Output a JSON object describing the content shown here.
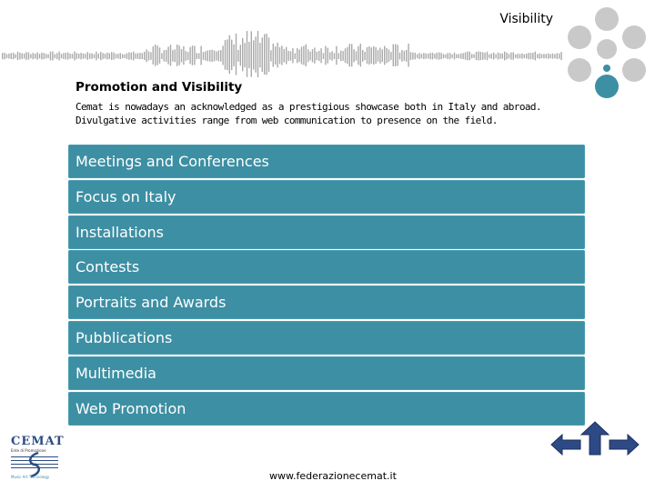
{
  "header": {
    "slide_title": "Visibility"
  },
  "section": {
    "heading": "Promotion and Visibility",
    "intro_lines": [
      "Cemat is nowadays an acknowledged as a prestigious showcase both in Italy and abroad.",
      "Divulgative activities range from web communication to presence on the field."
    ]
  },
  "menu": {
    "items": [
      "Meetings and Conferences",
      "Focus on Italy",
      "Installations",
      "Contests",
      "Portraits and Awards",
      "Pubblications",
      "Multimedia",
      "Web Promotion"
    ]
  },
  "logo": {
    "name": "CEMAT",
    "subtitle": "Ente di Promozione",
    "tagline": "Music Art Technology"
  },
  "footer": {
    "url": "www.federazionecemat.it"
  },
  "colors": {
    "accent": "#3d8fa3",
    "circle_inactive": "#c9c9c9",
    "circle_active": "#3d8fa3",
    "waveform": "#a9a9a9",
    "logo_blue": "#2b4d82"
  },
  "icons": {
    "back": "arrow-left-icon",
    "home": "arrow-up-icon",
    "forward": "arrow-right-icon"
  }
}
